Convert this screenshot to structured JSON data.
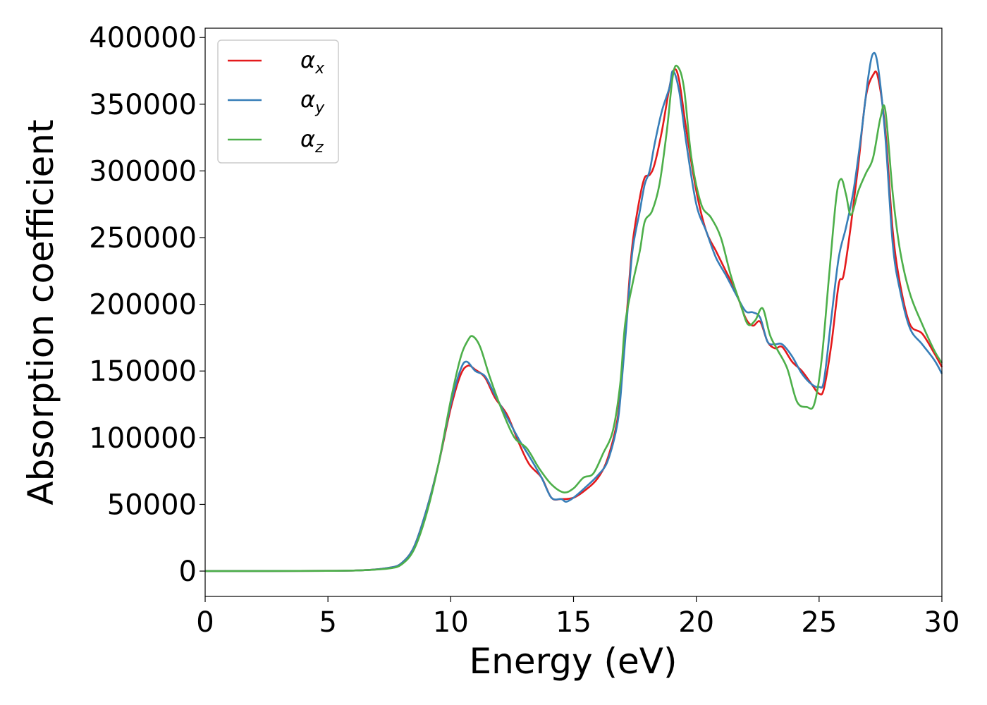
{
  "chart_data": {
    "type": "line",
    "title": "",
    "xlabel": "Energy (eV)",
    "ylabel": "Absorption coefficient",
    "xlim": [
      0,
      30
    ],
    "ylim": [
      -19000,
      407000
    ],
    "xticks": [
      0,
      5,
      10,
      15,
      20,
      25,
      30
    ],
    "xtick_labels": [
      "0",
      "5",
      "10",
      "15",
      "20",
      "25",
      "30"
    ],
    "yticks": [
      0,
      50000,
      100000,
      150000,
      200000,
      250000,
      300000,
      350000,
      400000
    ],
    "ytick_labels": [
      "0",
      "50000",
      "100000",
      "150000",
      "200000",
      "250000",
      "300000",
      "350000",
      "400000"
    ],
    "grid": false,
    "legend_position": "top-left",
    "series": [
      {
        "name": "α",
        "subscript": "x",
        "color": "#e41a1c",
        "points": [
          [
            0,
            0
          ],
          [
            5,
            200
          ],
          [
            6.5,
            700
          ],
          [
            7.5,
            2500
          ],
          [
            8,
            6000
          ],
          [
            8.5,
            18000
          ],
          [
            9,
            45000
          ],
          [
            9.5,
            80000
          ],
          [
            10,
            122000
          ],
          [
            10.4,
            147000
          ],
          [
            10.7,
            154000
          ],
          [
            11,
            151000
          ],
          [
            11.4,
            145000
          ],
          [
            11.8,
            130000
          ],
          [
            12.3,
            117000
          ],
          [
            12.8,
            95000
          ],
          [
            13.2,
            80000
          ],
          [
            13.7,
            70000
          ],
          [
            14.1,
            55000
          ],
          [
            14.5,
            54000
          ],
          [
            15,
            55000
          ],
          [
            15.5,
            61000
          ],
          [
            16,
            70000
          ],
          [
            16.4,
            85000
          ],
          [
            16.8,
            115000
          ],
          [
            17,
            155000
          ],
          [
            17.2,
            200000
          ],
          [
            17.4,
            245000
          ],
          [
            17.7,
            280000
          ],
          [
            17.9,
            295000
          ],
          [
            18.1,
            297000
          ],
          [
            18.3,
            305000
          ],
          [
            18.6,
            330000
          ],
          [
            18.9,
            362000
          ],
          [
            19.1,
            376000
          ],
          [
            19.3,
            368000
          ],
          [
            19.6,
            330000
          ],
          [
            20,
            285000
          ],
          [
            20.4,
            255000
          ],
          [
            20.8,
            240000
          ],
          [
            21.2,
            225000
          ],
          [
            21.6,
            210000
          ],
          [
            22,
            190000
          ],
          [
            22.3,
            184000
          ],
          [
            22.6,
            187000
          ],
          [
            22.9,
            172000
          ],
          [
            23.2,
            167000
          ],
          [
            23.5,
            168000
          ],
          [
            23.9,
            157000
          ],
          [
            24.3,
            150000
          ],
          [
            24.7,
            140000
          ],
          [
            25,
            133000
          ],
          [
            25.2,
            137000
          ],
          [
            25.5,
            170000
          ],
          [
            25.8,
            215000
          ],
          [
            26,
            222000
          ],
          [
            26.3,
            260000
          ],
          [
            26.6,
            305000
          ],
          [
            26.9,
            355000
          ],
          [
            27.2,
            372000
          ],
          [
            27.4,
            370000
          ],
          [
            27.7,
            330000
          ],
          [
            28,
            255000
          ],
          [
            28.3,
            215000
          ],
          [
            28.7,
            185000
          ],
          [
            29.2,
            178000
          ],
          [
            29.7,
            163000
          ],
          [
            30,
            153000
          ]
        ]
      },
      {
        "name": "α",
        "subscript": "y",
        "color": "#377eb8",
        "points": [
          [
            0,
            0
          ],
          [
            5,
            200
          ],
          [
            6.5,
            700
          ],
          [
            7.5,
            2500
          ],
          [
            8,
            6000
          ],
          [
            8.5,
            18000
          ],
          [
            9,
            45000
          ],
          [
            9.5,
            80000
          ],
          [
            10,
            125000
          ],
          [
            10.4,
            151000
          ],
          [
            10.65,
            157000
          ],
          [
            11,
            150000
          ],
          [
            11.4,
            146000
          ],
          [
            11.8,
            132000
          ],
          [
            12.3,
            115000
          ],
          [
            12.8,
            98000
          ],
          [
            13.2,
            86000
          ],
          [
            13.7,
            70000
          ],
          [
            14.1,
            55000
          ],
          [
            14.5,
            54000
          ],
          [
            14.7,
            52000
          ],
          [
            15,
            55000
          ],
          [
            15.5,
            63000
          ],
          [
            16,
            72000
          ],
          [
            16.4,
            83000
          ],
          [
            16.8,
            112000
          ],
          [
            17,
            150000
          ],
          [
            17.2,
            195000
          ],
          [
            17.4,
            240000
          ],
          [
            17.7,
            270000
          ],
          [
            17.9,
            290000
          ],
          [
            18.1,
            300000
          ],
          [
            18.3,
            320000
          ],
          [
            18.6,
            345000
          ],
          [
            18.9,
            362000
          ],
          [
            19.05,
            375000
          ],
          [
            19.3,
            360000
          ],
          [
            19.6,
            320000
          ],
          [
            20,
            275000
          ],
          [
            20.4,
            255000
          ],
          [
            20.8,
            235000
          ],
          [
            21.2,
            222000
          ],
          [
            21.6,
            208000
          ],
          [
            22,
            195000
          ],
          [
            22.3,
            194000
          ],
          [
            22.6,
            190000
          ],
          [
            22.9,
            172000
          ],
          [
            23.2,
            170000
          ],
          [
            23.5,
            170000
          ],
          [
            23.9,
            161000
          ],
          [
            24.3,
            148000
          ],
          [
            24.7,
            140000
          ],
          [
            25,
            138000
          ],
          [
            25.2,
            143000
          ],
          [
            25.5,
            190000
          ],
          [
            25.8,
            235000
          ],
          [
            26.1,
            258000
          ],
          [
            26.4,
            285000
          ],
          [
            26.7,
            325000
          ],
          [
            27,
            370000
          ],
          [
            27.2,
            388000
          ],
          [
            27.4,
            378000
          ],
          [
            27.7,
            325000
          ],
          [
            28,
            245000
          ],
          [
            28.3,
            210000
          ],
          [
            28.7,
            182000
          ],
          [
            29.2,
            170000
          ],
          [
            29.7,
            158000
          ],
          [
            30,
            148000
          ]
        ]
      },
      {
        "name": "α",
        "subscript": "z",
        "color": "#4daf4a",
        "points": [
          [
            0,
            0
          ],
          [
            5,
            200
          ],
          [
            6.5,
            700
          ],
          [
            7.5,
            2000
          ],
          [
            8,
            5000
          ],
          [
            8.5,
            16000
          ],
          [
            9,
            42000
          ],
          [
            9.5,
            80000
          ],
          [
            10,
            128000
          ],
          [
            10.4,
            160000
          ],
          [
            10.7,
            173000
          ],
          [
            10.9,
            176000
          ],
          [
            11.2,
            168000
          ],
          [
            11.6,
            145000
          ],
          [
            12.1,
            120000
          ],
          [
            12.6,
            100000
          ],
          [
            13.1,
            92000
          ],
          [
            13.6,
            77000
          ],
          [
            14.1,
            65000
          ],
          [
            14.6,
            59000
          ],
          [
            15,
            62000
          ],
          [
            15.4,
            70000
          ],
          [
            15.8,
            73000
          ],
          [
            16.2,
            88000
          ],
          [
            16.6,
            105000
          ],
          [
            16.9,
            140000
          ],
          [
            17.1,
            185000
          ],
          [
            17.4,
            215000
          ],
          [
            17.7,
            240000
          ],
          [
            17.9,
            262000
          ],
          [
            18.2,
            270000
          ],
          [
            18.5,
            290000
          ],
          [
            18.8,
            330000
          ],
          [
            19.05,
            372000
          ],
          [
            19.25,
            378000
          ],
          [
            19.5,
            362000
          ],
          [
            19.8,
            310000
          ],
          [
            20.2,
            275000
          ],
          [
            20.6,
            265000
          ],
          [
            21,
            250000
          ],
          [
            21.4,
            222000
          ],
          [
            21.8,
            200000
          ],
          [
            22.1,
            185000
          ],
          [
            22.4,
            188000
          ],
          [
            22.7,
            197000
          ],
          [
            23,
            177000
          ],
          [
            23.3,
            166000
          ],
          [
            23.7,
            152000
          ],
          [
            24.1,
            127000
          ],
          [
            24.5,
            123000
          ],
          [
            24.8,
            125000
          ],
          [
            25.1,
            158000
          ],
          [
            25.4,
            220000
          ],
          [
            25.7,
            280000
          ],
          [
            25.9,
            294000
          ],
          [
            26.1,
            282000
          ],
          [
            26.3,
            267000
          ],
          [
            26.6,
            285000
          ],
          [
            26.9,
            298000
          ],
          [
            27.2,
            310000
          ],
          [
            27.5,
            340000
          ],
          [
            27.7,
            345000
          ],
          [
            28,
            283000
          ],
          [
            28.3,
            240000
          ],
          [
            28.7,
            208000
          ],
          [
            29.2,
            185000
          ],
          [
            29.7,
            165000
          ],
          [
            30,
            156000
          ]
        ]
      }
    ]
  }
}
